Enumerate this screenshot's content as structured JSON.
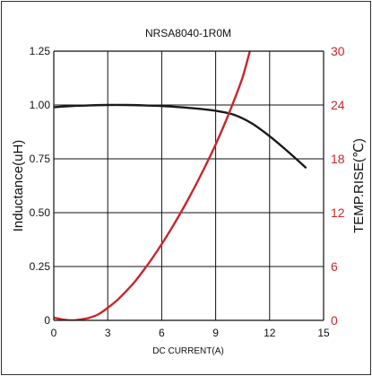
{
  "chart_data": {
    "type": "line",
    "title": "NRSA8040-1R0M",
    "xlabel": "DC CURRENT(A)",
    "ylabel": "Inductance(uH)",
    "y2label": "TEMP.RISE(℃)",
    "xlim": [
      0,
      15
    ],
    "ylim": [
      0,
      1.25
    ],
    "y2lim": [
      0,
      30
    ],
    "x_ticks": [
      "0",
      "3",
      "6",
      "9",
      "12",
      "15"
    ],
    "y_ticks": [
      "0",
      "0.25",
      "0.50",
      "0.75",
      "1.00",
      "1.25"
    ],
    "y2_ticks": [
      "0",
      "6",
      "12",
      "18",
      "24",
      "30"
    ],
    "grid": true,
    "series": [
      {
        "axis": "left",
        "color": "#1a1a1a",
        "x": [
          0,
          1,
          2,
          3,
          4,
          5,
          6,
          7,
          8,
          9,
          10,
          11,
          12,
          13,
          14
        ],
        "y": [
          0.99,
          0.995,
          0.998,
          1.0,
          1.0,
          0.998,
          0.995,
          0.99,
          0.983,
          0.973,
          0.955,
          0.915,
          0.855,
          0.785,
          0.71
        ]
      },
      {
        "axis": "right",
        "color": "#c8262b",
        "x": [
          0,
          0.5,
          1,
          1.5,
          2,
          2.5,
          3,
          3.5,
          4,
          4.5,
          5,
          5.5,
          6,
          6.5,
          7,
          7.5,
          8,
          8.5,
          9,
          9.5,
          10,
          10.5,
          10.9
        ],
        "y": [
          0.3,
          0.1,
          0.0,
          0.1,
          0.3,
          0.7,
          1.4,
          2.2,
          3.2,
          4.3,
          5.6,
          7.0,
          8.5,
          10.1,
          11.8,
          13.6,
          15.5,
          17.5,
          19.6,
          21.9,
          24.4,
          27.1,
          30
        ]
      }
    ]
  },
  "colors": {
    "left_axis": "#111111",
    "right_axis": "#c8262b",
    "grid": "#111111"
  }
}
